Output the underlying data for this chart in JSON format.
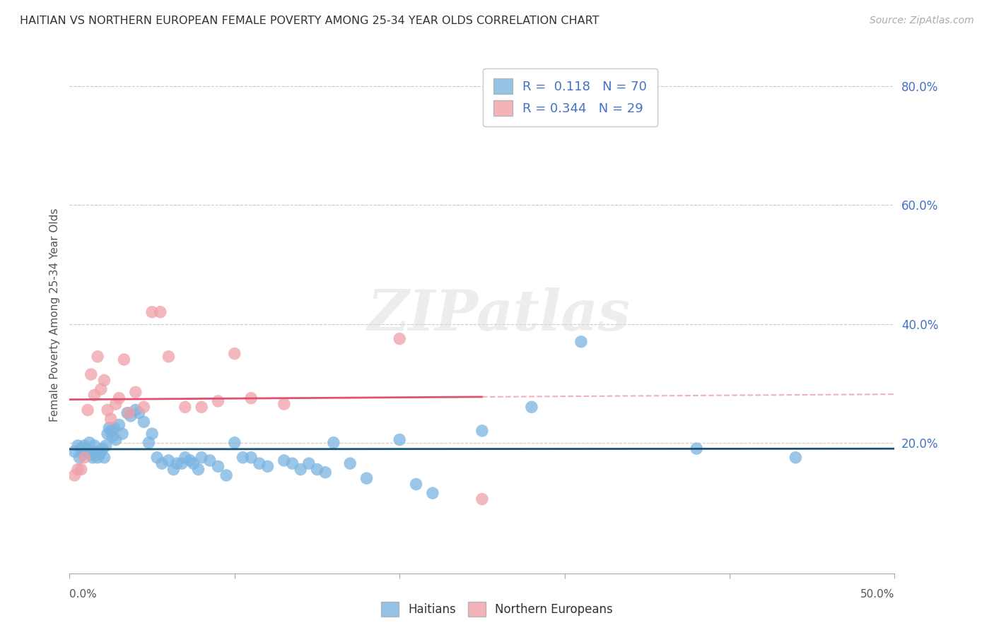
{
  "title": "HAITIAN VS NORTHERN EUROPEAN FEMALE POVERTY AMONG 25-34 YEAR OLDS CORRELATION CHART",
  "source": "Source: ZipAtlas.com",
  "ylabel": "Female Poverty Among 25-34 Year Olds",
  "xlim": [
    0.0,
    0.5
  ],
  "ylim": [
    -0.02,
    0.85
  ],
  "ytick_vals": [
    0.2,
    0.4,
    0.6,
    0.8
  ],
  "ytick_labels": [
    "20.0%",
    "40.0%",
    "60.0%",
    "80.0%"
  ],
  "haitians_color": "#7ab4e0",
  "northern_europeans_color": "#f0a0a8",
  "haitians_line_color": "#1a5276",
  "northern_europeans_line_color": "#e05070",
  "northern_europeans_dash_color": "#e8a0b0",
  "R_haitians": "0.118",
  "N_haitians": "70",
  "R_northern": "0.344",
  "N_northern": "29",
  "legend_text_color": "#4472c4",
  "watermark": "ZIPatlas",
  "background_color": "#ffffff",
  "grid_color": "#cccccc",
  "haitians_x": [
    0.003,
    0.005,
    0.006,
    0.007,
    0.008,
    0.009,
    0.01,
    0.011,
    0.012,
    0.013,
    0.014,
    0.015,
    0.016,
    0.017,
    0.018,
    0.019,
    0.02,
    0.021,
    0.022,
    0.023,
    0.024,
    0.025,
    0.026,
    0.027,
    0.028,
    0.03,
    0.032,
    0.035,
    0.037,
    0.04,
    0.042,
    0.045,
    0.048,
    0.05,
    0.053,
    0.056,
    0.06,
    0.063,
    0.065,
    0.068,
    0.07,
    0.073,
    0.075,
    0.078,
    0.08,
    0.085,
    0.09,
    0.095,
    0.1,
    0.105,
    0.11,
    0.115,
    0.12,
    0.13,
    0.135,
    0.14,
    0.145,
    0.15,
    0.155,
    0.16,
    0.17,
    0.18,
    0.2,
    0.21,
    0.22,
    0.25,
    0.28,
    0.31,
    0.38,
    0.44
  ],
  "haitians_y": [
    0.185,
    0.195,
    0.175,
    0.19,
    0.18,
    0.195,
    0.19,
    0.185,
    0.2,
    0.18,
    0.175,
    0.195,
    0.185,
    0.175,
    0.18,
    0.185,
    0.19,
    0.175,
    0.195,
    0.215,
    0.225,
    0.22,
    0.21,
    0.225,
    0.205,
    0.23,
    0.215,
    0.25,
    0.245,
    0.255,
    0.25,
    0.235,
    0.2,
    0.215,
    0.175,
    0.165,
    0.17,
    0.155,
    0.165,
    0.165,
    0.175,
    0.17,
    0.165,
    0.155,
    0.175,
    0.17,
    0.16,
    0.145,
    0.2,
    0.175,
    0.175,
    0.165,
    0.16,
    0.17,
    0.165,
    0.155,
    0.165,
    0.155,
    0.15,
    0.2,
    0.165,
    0.14,
    0.205,
    0.13,
    0.115,
    0.22,
    0.26,
    0.37,
    0.19,
    0.175
  ],
  "northern_x": [
    0.003,
    0.005,
    0.007,
    0.009,
    0.011,
    0.013,
    0.015,
    0.017,
    0.019,
    0.021,
    0.023,
    0.025,
    0.028,
    0.03,
    0.033,
    0.036,
    0.04,
    0.045,
    0.05,
    0.055,
    0.06,
    0.07,
    0.08,
    0.09,
    0.1,
    0.11,
    0.13,
    0.2,
    0.25
  ],
  "northern_y": [
    0.145,
    0.155,
    0.155,
    0.175,
    0.255,
    0.315,
    0.28,
    0.345,
    0.29,
    0.305,
    0.255,
    0.24,
    0.265,
    0.275,
    0.34,
    0.25,
    0.285,
    0.26,
    0.42,
    0.42,
    0.345,
    0.26,
    0.26,
    0.27,
    0.35,
    0.275,
    0.265,
    0.375,
    0.105
  ]
}
